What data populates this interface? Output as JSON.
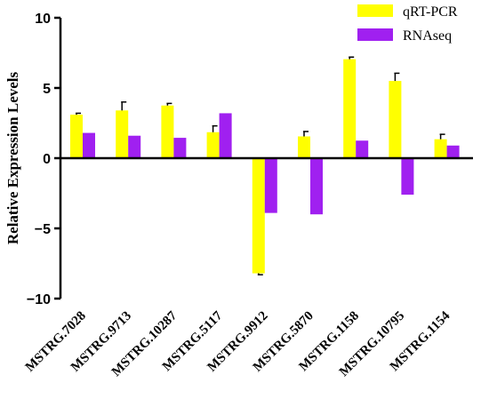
{
  "chart_data": {
    "type": "bar",
    "title": "",
    "xlabel": "",
    "ylabel": "Relative Expression Levels",
    "ylim": [
      -10,
      10
    ],
    "yticks": [
      10,
      5,
      0,
      -5,
      -10
    ],
    "grid": false,
    "legend_position": "top-right",
    "categories": [
      "MSTRG.7028",
      "MSTRG.9713",
      "MSTRG.10287",
      "MSTRG.5117",
      "MSTRG.9912",
      "MSTRG.5870",
      "MSTRG.1158",
      "MSTRG.10795",
      "MSTRG.1154"
    ],
    "series": [
      {
        "name": "qRT-PCR",
        "color": "#ffff00",
        "values": [
          3.1,
          3.4,
          3.75,
          1.85,
          -8.2,
          1.55,
          7.05,
          5.5,
          1.35
        ],
        "errors": [
          0.1,
          0.6,
          0.15,
          0.45,
          0.1,
          0.35,
          0.15,
          0.55,
          0.35
        ]
      },
      {
        "name": "RNAseq",
        "color": "#a020f0",
        "values": [
          1.8,
          1.6,
          1.45,
          3.2,
          -3.9,
          -4.0,
          1.25,
          -2.6,
          0.9
        ],
        "errors": [
          0,
          0,
          0,
          0,
          0,
          0,
          0,
          0,
          0
        ]
      }
    ]
  }
}
